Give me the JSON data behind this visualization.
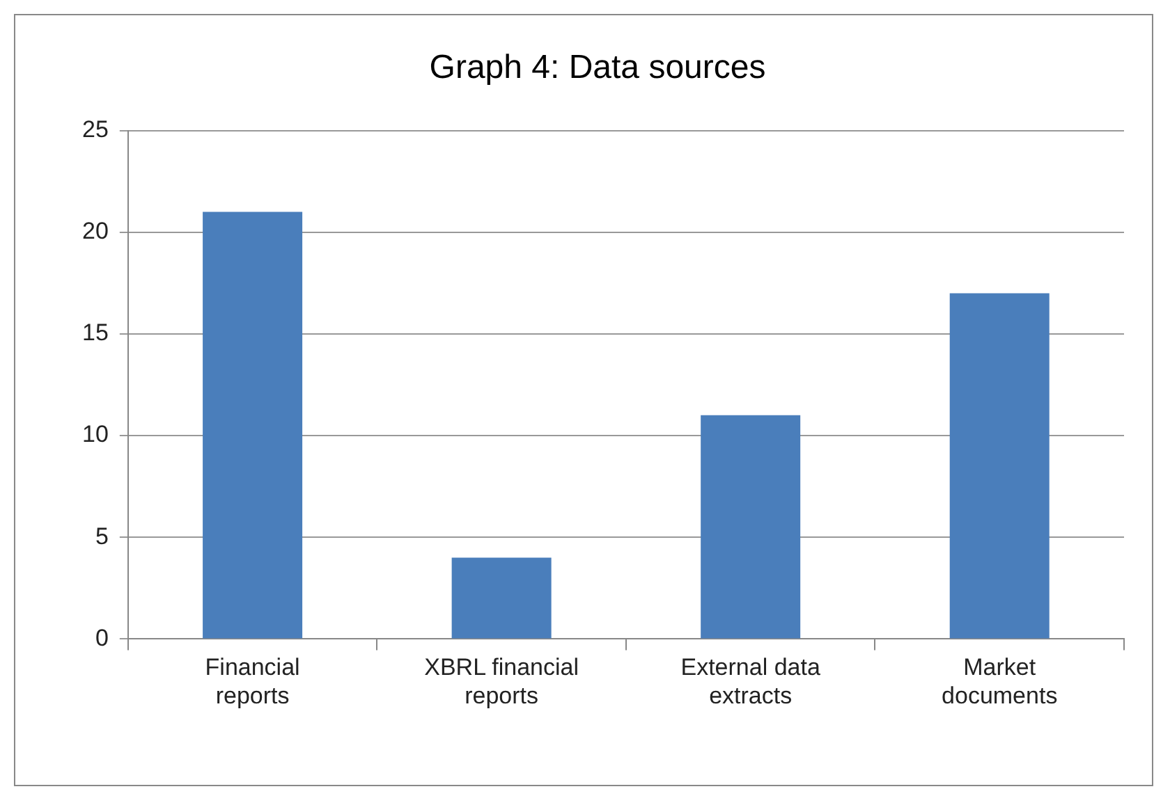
{
  "chart_data": {
    "type": "bar",
    "title": "Graph 4: Data sources",
    "categories": [
      "Financial reports",
      "XBRL financial reports",
      "External data extracts",
      "Market documents"
    ],
    "values": [
      21,
      4,
      11,
      17
    ],
    "color": "#4a7ebb",
    "ylim": [
      0,
      25
    ],
    "yticks": [
      0,
      5,
      10,
      15,
      20,
      25
    ],
    "grid": "y",
    "legend": false
  }
}
